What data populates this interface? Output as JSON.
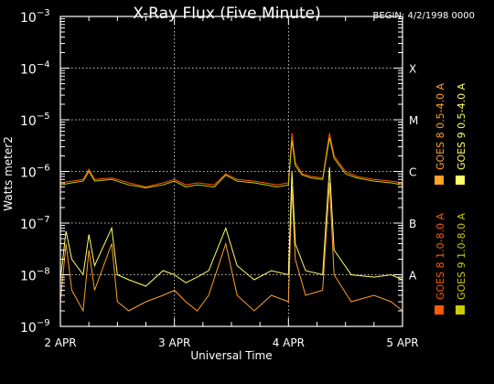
{
  "colors": {
    "background": "#000000",
    "frame": "#ffffff",
    "goes8_long": "#ff5a00",
    "goes8_short": "#ffa028",
    "goes9_long": "#cccc00",
    "goes9_short": "#ffff66"
  },
  "chart_data": {
    "type": "line",
    "title": "X-Ray Flux (Five Minute)",
    "begin_label": "BEGIN: 4/2/1998 0000",
    "xlabel": "Universal Time",
    "ylabel": "Watts meter2",
    "y_scale": "log",
    "ylim": [
      1e-09,
      0.001
    ],
    "xlim_days": [
      0,
      3
    ],
    "x_tick_labels": [
      "2 APR",
      "3 APR",
      "4 APR",
      "5 APR"
    ],
    "y_tick_labels": [
      {
        "base": "10",
        "exp": "−9"
      },
      {
        "base": "10",
        "exp": "−8"
      },
      {
        "base": "10",
        "exp": "−7"
      },
      {
        "base": "10",
        "exp": "−6"
      },
      {
        "base": "10",
        "exp": "−5"
      },
      {
        "base": "10",
        "exp": "−4"
      },
      {
        "base": "10",
        "exp": "−3"
      }
    ],
    "flare_classes": [
      {
        "label": "A",
        "level": 1e-08
      },
      {
        "label": "B",
        "level": 1e-07
      },
      {
        "label": "C",
        "level": 1e-06
      },
      {
        "label": "M",
        "level": 1e-05
      },
      {
        "label": "X",
        "level": 0.0001
      }
    ],
    "grid": {
      "horizontal_dotted_at": [
        1e-08,
        1e-07,
        1e-06,
        1e-05,
        0.0001
      ],
      "vertical_dotted_at_days": [
        1,
        2
      ]
    },
    "legend_position": "right",
    "series": [
      {
        "name": "GOES 8 1.0-8.0 A",
        "color": "#ff5a00",
        "points": [
          [
            0.0,
            6e-07
          ],
          [
            0.1,
            6.5e-07
          ],
          [
            0.2,
            7e-07
          ],
          [
            0.25,
            1.1e-06
          ],
          [
            0.3,
            7e-07
          ],
          [
            0.45,
            7.5e-07
          ],
          [
            0.6,
            6e-07
          ],
          [
            0.75,
            5e-07
          ],
          [
            0.9,
            6e-07
          ],
          [
            1.0,
            7e-07
          ],
          [
            1.1,
            5.5e-07
          ],
          [
            1.2,
            6e-07
          ],
          [
            1.35,
            5.5e-07
          ],
          [
            1.45,
            9e-07
          ],
          [
            1.55,
            7e-07
          ],
          [
            1.7,
            6.5e-07
          ],
          [
            1.9,
            5.5e-07
          ],
          [
            2.0,
            6e-07
          ],
          [
            2.03,
            5.5e-06
          ],
          [
            2.06,
            1.5e-06
          ],
          [
            2.12,
            9e-07
          ],
          [
            2.2,
            8e-07
          ],
          [
            2.3,
            7.5e-07
          ],
          [
            2.36,
            5.5e-06
          ],
          [
            2.4,
            2e-06
          ],
          [
            2.5,
            1e-06
          ],
          [
            2.6,
            8e-07
          ],
          [
            2.75,
            7e-07
          ],
          [
            2.9,
            6.5e-07
          ],
          [
            3.0,
            6e-07
          ]
        ]
      },
      {
        "name": "GOES 8 0.5-4.0 A",
        "color": "#ffa028",
        "points": [
          [
            0.0,
            3e-09
          ],
          [
            0.05,
            4e-08
          ],
          [
            0.1,
            5e-09
          ],
          [
            0.2,
            2e-09
          ],
          [
            0.25,
            3e-08
          ],
          [
            0.3,
            5e-09
          ],
          [
            0.45,
            4e-08
          ],
          [
            0.5,
            3e-09
          ],
          [
            0.6,
            2e-09
          ],
          [
            0.75,
            3e-09
          ],
          [
            0.9,
            4e-09
          ],
          [
            1.0,
            5e-09
          ],
          [
            1.1,
            3e-09
          ],
          [
            1.2,
            2e-09
          ],
          [
            1.3,
            4e-09
          ],
          [
            1.45,
            4e-08
          ],
          [
            1.55,
            4e-09
          ],
          [
            1.7,
            2e-09
          ],
          [
            1.85,
            4e-09
          ],
          [
            2.0,
            3e-09
          ],
          [
            2.03,
            5e-07
          ],
          [
            2.06,
            2e-08
          ],
          [
            2.15,
            4e-09
          ],
          [
            2.3,
            5e-09
          ],
          [
            2.36,
            6e-07
          ],
          [
            2.4,
            1e-08
          ],
          [
            2.55,
            3e-09
          ],
          [
            2.75,
            4e-09
          ],
          [
            2.9,
            3e-09
          ],
          [
            3.0,
            2e-09
          ]
        ]
      },
      {
        "name": "GOES 9 1.0-8.0 A",
        "color": "#cccc00",
        "points": [
          [
            0.0,
            5.5e-07
          ],
          [
            0.1,
            6e-07
          ],
          [
            0.2,
            6.5e-07
          ],
          [
            0.25,
            1e-06
          ],
          [
            0.3,
            6.5e-07
          ],
          [
            0.45,
            7e-07
          ],
          [
            0.6,
            5.5e-07
          ],
          [
            0.75,
            4.8e-07
          ],
          [
            0.9,
            5.5e-07
          ],
          [
            1.0,
            6.5e-07
          ],
          [
            1.1,
            5e-07
          ],
          [
            1.2,
            5.5e-07
          ],
          [
            1.35,
            5e-07
          ],
          [
            1.45,
            8.5e-07
          ],
          [
            1.55,
            6.5e-07
          ],
          [
            1.7,
            6e-07
          ],
          [
            1.9,
            5e-07
          ],
          [
            2.0,
            5.5e-07
          ],
          [
            2.03,
            4e-06
          ],
          [
            2.06,
            1.3e-06
          ],
          [
            2.12,
            8.5e-07
          ],
          [
            2.2,
            7.5e-07
          ],
          [
            2.3,
            7e-07
          ],
          [
            2.36,
            4.5e-06
          ],
          [
            2.4,
            1.8e-06
          ],
          [
            2.5,
            9e-07
          ],
          [
            2.6,
            7.5e-07
          ],
          [
            2.75,
            6.5e-07
          ],
          [
            2.9,
            6e-07
          ],
          [
            3.0,
            5.5e-07
          ]
        ]
      },
      {
        "name": "GOES 9 0.5-4.0 A",
        "color": "#ffff66",
        "points": [
          [
            0.0,
            8e-09
          ],
          [
            0.05,
            7e-08
          ],
          [
            0.1,
            2e-08
          ],
          [
            0.2,
            1e-08
          ],
          [
            0.25,
            6e-08
          ],
          [
            0.3,
            1.5e-08
          ],
          [
            0.45,
            8e-08
          ],
          [
            0.5,
            1e-08
          ],
          [
            0.6,
            8e-09
          ],
          [
            0.75,
            6e-09
          ],
          [
            0.9,
            1.2e-08
          ],
          [
            1.0,
            1e-08
          ],
          [
            1.1,
            7e-09
          ],
          [
            1.2,
            9e-09
          ],
          [
            1.3,
            1.2e-08
          ],
          [
            1.45,
            8e-08
          ],
          [
            1.55,
            1.5e-08
          ],
          [
            1.7,
            8e-09
          ],
          [
            1.85,
            1.2e-08
          ],
          [
            2.0,
            1e-08
          ],
          [
            2.03,
            1e-06
          ],
          [
            2.06,
            4e-08
          ],
          [
            2.15,
            1.2e-08
          ],
          [
            2.3,
            1e-08
          ],
          [
            2.36,
            1.2e-06
          ],
          [
            2.4,
            3e-08
          ],
          [
            2.55,
            1e-08
          ],
          [
            2.75,
            9e-09
          ],
          [
            2.9,
            1e-08
          ],
          [
            3.0,
            8e-09
          ]
        ]
      }
    ]
  }
}
